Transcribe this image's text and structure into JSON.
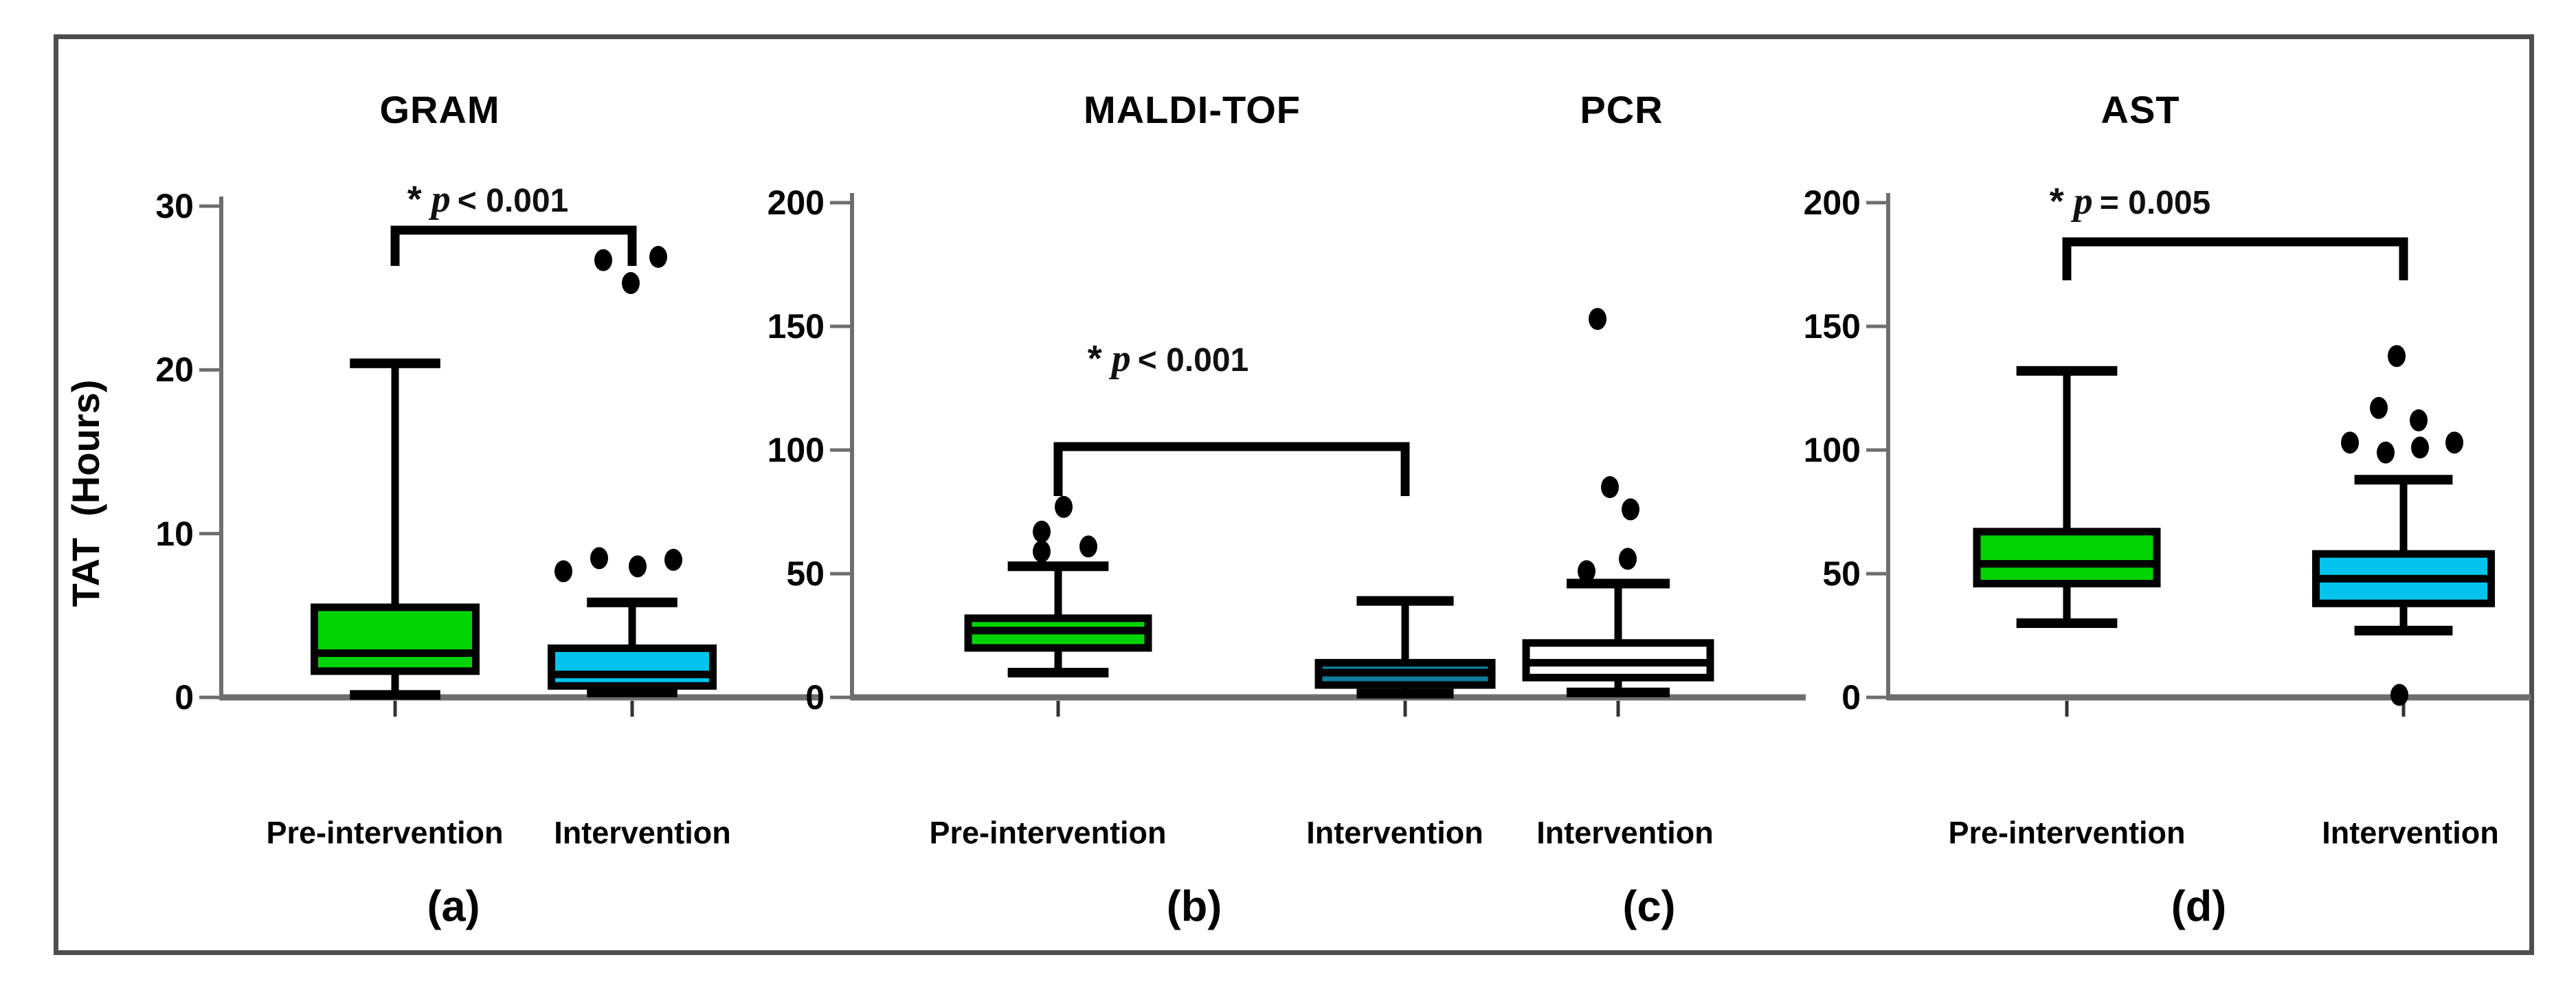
{
  "figure": {
    "background": "#ffffff",
    "frame_color": "#4e4e4e",
    "axis_color": "#6e6e6e",
    "draw_color": "#000000",
    "green": "#00d400",
    "cyan": "#00c4ee",
    "teal": "#0d7f9a",
    "white_box": "#ffffff"
  },
  "ylabel": "TAT  (Hours)",
  "chart_data": [
    {
      "type": "box",
      "panel": "a",
      "panel_letter": "(a)",
      "title": "GRAM",
      "ylim": [
        0,
        30
      ],
      "yticks": [
        0,
        10,
        20,
        30
      ],
      "grid": false,
      "annotation": {
        "star": "*",
        "p_symbol": "p",
        "comparison": "< 0.001",
        "full": "* p < 0.001"
      },
      "categories": [
        "Pre-intervention",
        "Intervention"
      ],
      "series": [
        {
          "name": "Pre-intervention",
          "color": "#00d400",
          "whisker_low": 0.15,
          "q1": 1.6,
          "median": 2.7,
          "q3": 5.5,
          "whisker_high": 20.4,
          "outliers": []
        },
        {
          "name": "Intervention",
          "color": "#00c4ee",
          "whisker_low": 0.3,
          "q1": 0.7,
          "median": 1.4,
          "q3": 3.0,
          "whisker_high": 5.8,
          "outliers": [
            {
              "v": 26.7,
              "dx": -42
            },
            {
              "v": 26.9,
              "dx": 38
            },
            {
              "v": 25.3,
              "dx": -2
            },
            {
              "v": 7.7,
              "dx": -100
            },
            {
              "v": 8.5,
              "dx": -48
            },
            {
              "v": 8.0,
              "dx": 8
            },
            {
              "v": 8.4,
              "dx": 60
            }
          ]
        }
      ],
      "layout": {
        "y0": 1015,
        "ytop": 300,
        "axis_x": 322,
        "baseline": [
          320,
          1195
        ],
        "groups": [
          {
            "cx": 575,
            "bw": 235
          },
          {
            "cx": 920,
            "bw": 235
          }
        ],
        "sig": {
          "bar_y": 335,
          "leg": 52
        }
      }
    },
    {
      "type": "box",
      "panel": "b",
      "panel_letter": "(b)",
      "title": "MALDI-TOF",
      "ylim": [
        0,
        200
      ],
      "yticks": [
        0,
        50,
        100,
        150,
        200
      ],
      "grid": false,
      "annotation": {
        "star": "*",
        "p_symbol": "p",
        "comparison": "< 0.001",
        "full": "* p < 0.001"
      },
      "categories": [
        "Pre-intervention",
        "Intervention"
      ],
      "series": [
        {
          "name": "Pre-intervention",
          "color": "#00d400",
          "whisker_low": 10,
          "q1": 20,
          "median": 27,
          "q3": 32,
          "whisker_high": 53,
          "outliers": [
            {
              "v": 77,
              "dx": 8
            },
            {
              "v": 67,
              "dx": -24
            },
            {
              "v": 59,
              "dx": -24
            },
            {
              "v": 61,
              "dx": 44
            }
          ]
        },
        {
          "name": "Intervention",
          "color": "#0d7f9a",
          "whisker_low": 1.5,
          "q1": 5,
          "median": 10,
          "q3": 14,
          "whisker_high": 39,
          "outliers": []
        }
      ],
      "layout": {
        "y0": 1015,
        "ytop": 295,
        "axis_x": 1240,
        "baseline": [
          1238,
          2628
        ],
        "groups": [
          {
            "cx": 1540,
            "bw": 262
          },
          {
            "cx": 2045,
            "bw": 252
          }
        ],
        "sig": {
          "bar_y": 650,
          "leg": 72
        }
      }
    },
    {
      "type": "box",
      "panel": "c",
      "panel_letter": "(c)",
      "title": "PCR",
      "ylim": [
        0,
        200
      ],
      "yticks": [],
      "grid": false,
      "annotation": null,
      "categories": [
        "Intervention"
      ],
      "series": [
        {
          "name": "Intervention",
          "color": "#ffffff",
          "whisker_low": 2,
          "q1": 8,
          "median": 14,
          "q3": 22,
          "whisker_high": 46,
          "outliers": [
            {
              "v": 51,
              "dx": -46
            },
            {
              "v": 56,
              "dx": 14
            },
            {
              "v": 76,
              "dx": 18
            },
            {
              "v": 85,
              "dx": -12
            },
            {
              "v": 153,
              "dx": -30
            }
          ]
        }
      ],
      "layout": {
        "y0": 1015,
        "ytop": 295,
        "axis_x": null,
        "baseline": null,
        "groups": [
          {
            "cx": 2355,
            "bw": 268
          }
        ],
        "sig": null
      }
    },
    {
      "type": "box",
      "panel": "d",
      "panel_letter": "(d)",
      "title": "AST",
      "ylim": [
        0,
        200
      ],
      "yticks": [
        0,
        50,
        100,
        150,
        200
      ],
      "grid": false,
      "annotation": {
        "star": "*",
        "p_symbol": "p",
        "comparison": "= 0.005",
        "full": "* p = 0.005"
      },
      "categories": [
        "Pre-intervention",
        "Intervention"
      ],
      "series": [
        {
          "name": "Pre-intervention",
          "color": "#00d400",
          "whisker_low": 30,
          "q1": 46,
          "median": 54,
          "q3": 67,
          "whisker_high": 132,
          "outliers": []
        },
        {
          "name": "Intervention",
          "color": "#00c4ee",
          "whisker_low": 27,
          "q1": 38,
          "median": 48,
          "q3": 58,
          "whisker_high": 88,
          "outliers": [
            {
              "v": 138,
              "dx": -10
            },
            {
              "v": 117,
              "dx": -36
            },
            {
              "v": 112,
              "dx": 22
            },
            {
              "v": 103,
              "dx": -78
            },
            {
              "v": 99,
              "dx": -26
            },
            {
              "v": 101,
              "dx": 24
            },
            {
              "v": 103,
              "dx": 74
            },
            {
              "v": 1,
              "dx": -6
            }
          ]
        }
      ],
      "layout": {
        "y0": 1015,
        "ytop": 295,
        "axis_x": 2748,
        "baseline": [
          2746,
          3684
        ],
        "groups": [
          {
            "cx": 3008,
            "bw": 262
          },
          {
            "cx": 3498,
            "bw": 255
          }
        ],
        "sig": {
          "bar_y": 352,
          "leg": 56
        }
      }
    }
  ]
}
